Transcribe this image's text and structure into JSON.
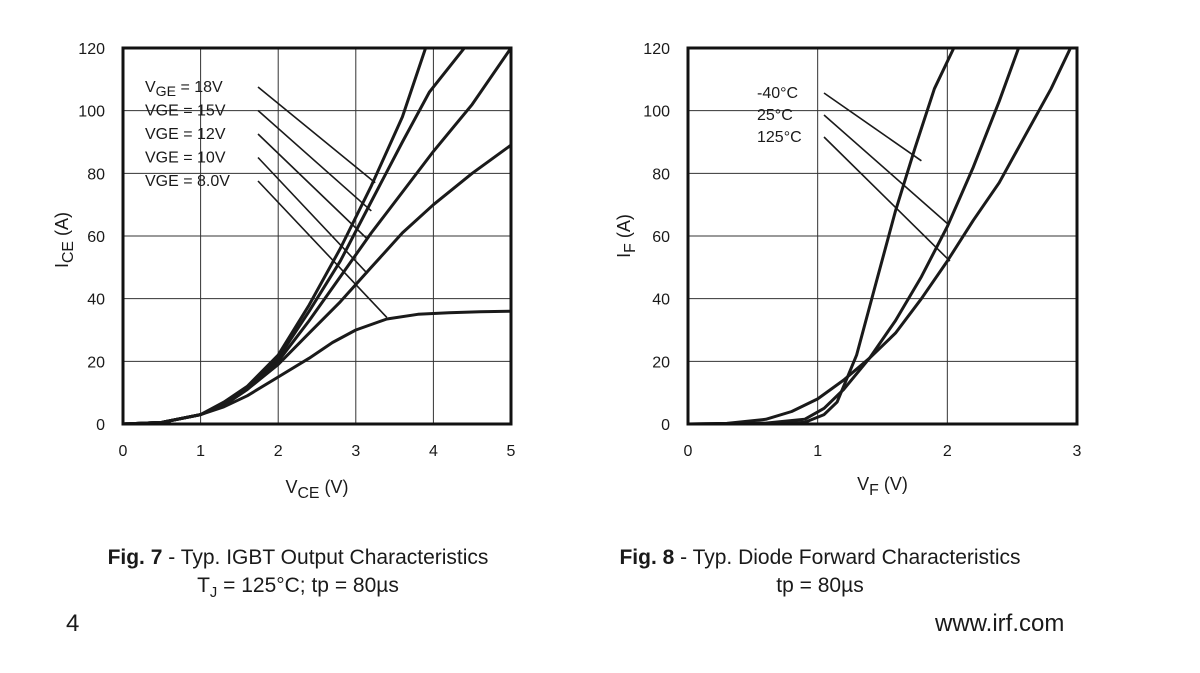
{
  "chart_data": [
    {
      "type": "line",
      "figure_label": "Fig. 7",
      "title": "- Typ. IGBT Output Characteristics",
      "conditions": {
        "tj_symbol": "T",
        "tj_sub": "J",
        "tj_rest": "= 125°C; tp = 80µs"
      },
      "xlabel": {
        "main": "V",
        "sub": "CE",
        "unit": "(V)"
      },
      "ylabel": {
        "main": "I",
        "sub": "CE",
        "unit": "(A)"
      },
      "xlim": [
        0,
        5
      ],
      "ylim": [
        0,
        120
      ],
      "xticks": [
        0,
        1,
        2,
        3,
        4,
        5
      ],
      "yticks": [
        0,
        20,
        40,
        60,
        80,
        100,
        120
      ],
      "legend": [
        {
          "main": "V",
          "sub": "GE",
          "rest": "= 18V",
          "pointer": [
            3.25,
            77
          ]
        },
        {
          "main": "VGE",
          "sub": "",
          "rest": "= 15V",
          "pointer": [
            3.2,
            68
          ]
        },
        {
          "main": "VGE",
          "sub": "",
          "rest": "= 12V",
          "pointer": [
            3.15,
            59
          ]
        },
        {
          "main": "VGE",
          "sub": "",
          "rest": "= 10V",
          "pointer": [
            3.15,
            48
          ]
        },
        {
          "main": "VGE",
          "sub": "",
          "rest": "= 8.0V",
          "pointer": [
            3.4,
            34
          ]
        }
      ],
      "series": [
        {
          "name": "VGE = 18V",
          "x": [
            0,
            0.5,
            1,
            1.3,
            1.6,
            2,
            2.4,
            2.8,
            3.2,
            3.6,
            3.9
          ],
          "y": [
            0,
            0.5,
            3,
            7,
            12,
            22,
            38,
            56,
            76,
            98,
            120
          ]
        },
        {
          "name": "VGE = 15V",
          "x": [
            0,
            0.5,
            1,
            1.3,
            1.6,
            2,
            2.4,
            2.8,
            3.2,
            3.6,
            3.95,
            4.4
          ],
          "y": [
            0,
            0.5,
            3,
            6.5,
            11.5,
            21,
            36,
            52,
            71,
            90,
            106,
            120
          ]
        },
        {
          "name": "VGE = 12V",
          "x": [
            0,
            0.5,
            1,
            1.3,
            1.6,
            2,
            2.4,
            2.8,
            3.2,
            3.6,
            4,
            4.5,
            5
          ],
          "y": [
            0,
            0.5,
            3,
            6,
            11,
            20,
            33,
            47,
            61,
            74,
            87,
            102,
            120
          ]
        },
        {
          "name": "VGE = 10V",
          "x": [
            0,
            0.5,
            1,
            1.3,
            1.6,
            2,
            2.4,
            2.8,
            3.2,
            3.6,
            4,
            4.5,
            5
          ],
          "y": [
            0,
            0.5,
            3,
            6,
            11,
            19,
            29,
            39,
            50,
            61,
            70,
            80,
            89
          ]
        },
        {
          "name": "VGE = 8.0V",
          "x": [
            0,
            0.5,
            1,
            1.3,
            1.6,
            2,
            2.4,
            2.7,
            3,
            3.4,
            3.8,
            4.2,
            4.6,
            5
          ],
          "y": [
            0,
            0.5,
            3,
            5.5,
            9,
            15,
            21,
            26,
            30,
            33.5,
            35,
            35.5,
            35.8,
            36
          ]
        }
      ]
    },
    {
      "type": "line",
      "figure_label": "Fig. 8",
      "title": "- Typ. Diode Forward Characteristics",
      "conditions": {
        "text": "tp = 80µs"
      },
      "xlabel": {
        "main": "V",
        "sub": "F",
        "unit": "(V)"
      },
      "ylabel": {
        "main": "I",
        "sub": "F",
        "unit": "(A)"
      },
      "xlim": [
        0,
        3
      ],
      "ylim": [
        0,
        120
      ],
      "xticks": [
        0,
        1,
        2,
        3
      ],
      "yticks": [
        0,
        20,
        40,
        60,
        80,
        100,
        120
      ],
      "legend": [
        {
          "main": "-40°C",
          "sub": "",
          "rest": "",
          "pointer": [
            1.8,
            84
          ]
        },
        {
          "main": "25°C",
          "sub": "",
          "rest": "",
          "pointer": [
            2.0,
            64
          ]
        },
        {
          "main": "125°C",
          "sub": "",
          "rest": "",
          "pointer": [
            2.02,
            52
          ]
        }
      ],
      "series": [
        {
          "name": "-40°C",
          "x": [
            0,
            0.6,
            0.9,
            1.05,
            1.15,
            1.3,
            1.45,
            1.6,
            1.75,
            1.9,
            2.05
          ],
          "y": [
            0,
            0,
            0.5,
            3,
            7,
            22,
            45,
            68,
            88,
            107,
            120
          ]
        },
        {
          "name": "25°C",
          "x": [
            0,
            0.6,
            0.9,
            1.05,
            1.2,
            1.4,
            1.6,
            1.8,
            2.0,
            2.2,
            2.4,
            2.55
          ],
          "y": [
            0,
            0.3,
            1.5,
            5,
            11,
            21,
            33,
            47,
            63,
            82,
            103,
            120
          ]
        },
        {
          "name": "125°C",
          "x": [
            0,
            0.3,
            0.6,
            0.8,
            1.0,
            1.2,
            1.4,
            1.6,
            1.8,
            2.0,
            2.2,
            2.4,
            2.6,
            2.8,
            2.95
          ],
          "y": [
            0,
            0.2,
            1.5,
            4,
            8,
            14,
            21,
            29,
            40,
            52,
            65,
            77,
            92,
            107,
            120
          ]
        }
      ]
    }
  ],
  "footer": {
    "page_number": "4",
    "website": "www.irf.com"
  }
}
